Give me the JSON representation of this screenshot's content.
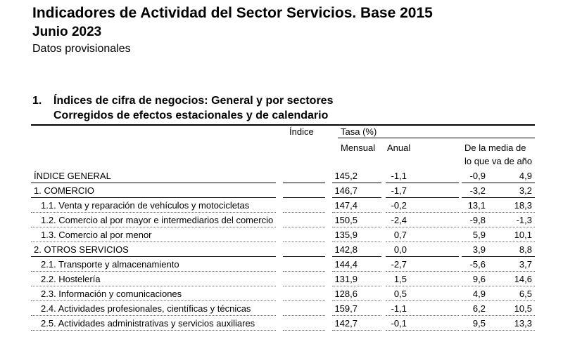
{
  "header": {
    "title": "Indicadores de Actividad del Sector Servicios. Base 2015",
    "subtitle": "Junio 2023",
    "note": "Datos provisionales"
  },
  "section": {
    "number": "1.",
    "title_line1": "Índices de cifra de negocios: General y por sectores",
    "title_line2": "Corregidos de efectos estacionales y de calendario"
  },
  "table": {
    "col_indice": "Índice",
    "col_tasa": "Tasa (%)",
    "col_mensual": "Mensual",
    "col_anual": "Anual",
    "col_media_line1": "De la media de",
    "col_media_line2": "lo que va de año",
    "rows": [
      {
        "label": "ÍNDICE GENERAL",
        "indice": "145,2",
        "mensual": "-1,1",
        "anual": "-0,9",
        "media": "4,9",
        "level": "main"
      },
      {
        "label": "1. COMERCIO",
        "indice": "146,7",
        "mensual": "-1,7",
        "anual": "-3,2",
        "media": "3,2",
        "level": "main"
      },
      {
        "label": "1.1. Venta y reparación de vehículos y motocicletas",
        "indice": "147,4",
        "mensual": "-0,2",
        "anual": "13,1",
        "media": "18,3",
        "level": "sub"
      },
      {
        "label": "1.2. Comercio al por mayor e intermediarios del comercio",
        "indice": "150,5",
        "mensual": "-2,4",
        "anual": "-9,8",
        "media": "-1,3",
        "level": "sub"
      },
      {
        "label": "1.3. Comercio al por menor",
        "indice": "135,9",
        "mensual": "0,7",
        "anual": "5,9",
        "media": "10,1",
        "level": "sub"
      },
      {
        "label": "2. OTROS SERVICIOS",
        "indice": "142,8",
        "mensual": "0,0",
        "anual": "3,9",
        "media": "8,8",
        "level": "main"
      },
      {
        "label": "2.1. Transporte y almacenamiento",
        "indice": "144,4",
        "mensual": "-2,7",
        "anual": "-5,6",
        "media": "3,7",
        "level": "sub"
      },
      {
        "label": "2.2. Hostelería",
        "indice": "131,9",
        "mensual": "1,5",
        "anual": "9,6",
        "media": "14,6",
        "level": "sub"
      },
      {
        "label": "2.3. Información y comunicaciones",
        "indice": "128,6",
        "mensual": "0,5",
        "anual": "4,9",
        "media": "6,5",
        "level": "sub"
      },
      {
        "label": "2.4. Actividades profesionales, científicas y técnicas",
        "indice": "159,7",
        "mensual": "-1,1",
        "anual": "6,2",
        "media": "10,5",
        "level": "sub"
      },
      {
        "label": "2.5. Actividades administrativas y servicios auxiliares",
        "indice": "142,7",
        "mensual": "-0,1",
        "anual": "9,5",
        "media": "13,3",
        "level": "sub"
      }
    ]
  }
}
